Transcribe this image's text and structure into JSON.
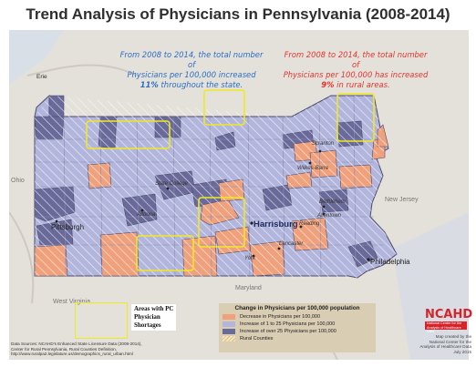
{
  "title": "Trend Analysis of Physicians in Pennsylvania (2008-2014)",
  "stat_statewide": {
    "line1": "From 2008 to 2014, the total number of",
    "line2": "Physicians per 100,000  increased",
    "pct": "11%",
    "line3": " throughout the state."
  },
  "stat_rural": {
    "line1": "From 2008 to 2014, the total number of",
    "line2": "Physicians per 100,000 has increased",
    "pct": "9%",
    "line3": " in rural areas."
  },
  "map_labels": {
    "erie": "Erie",
    "ohio": "Ohio",
    "new_jersey": "New Jersey",
    "west_virginia": "West Virginia",
    "maryland": "Maryland"
  },
  "cities": {
    "scranton": "Scranton",
    "wilkes_barre": "Wilkes-Barre",
    "state_college": "State College",
    "pittsburgh": "Pittsburgh",
    "altoona": "Altoona",
    "bethlehem": "Bethlehem",
    "allentown": "Allentown",
    "reading": "Reading",
    "harrisburg": "Harrisburg",
    "lancaster": "Lancaster",
    "york": "York",
    "philadelphia": "Philadelphia"
  },
  "shortage_legend": {
    "line1": "Areas with PC",
    "line2": "Physician",
    "line3": "Shortages"
  },
  "legend": {
    "title": "Change in Physicians per 100,000 population",
    "items": [
      {
        "label": "Decrease in Physicians per 100,000",
        "color": "#f0a17c"
      },
      {
        "label": "Increase of 1 to 25 Physicians per 100,000",
        "color": "#b3b6dc"
      },
      {
        "label": "Increase of over 25 Physicians per 100,000",
        "color": "#6a6a9a"
      },
      {
        "label": "Rural Counties",
        "color": "#f1e6c4"
      }
    ]
  },
  "sources": {
    "line1": "Data Sources: NCAHD's Enhanced State Licensure Data (2008-2014),",
    "line2": "Center for Rural Pennsylvania, Rural Counties Definition,",
    "line3": "http://www.ruralpa2.legislature.us/demographics_rural_urban.html"
  },
  "ncahd": {
    "logo": "NCAHD",
    "badge_line1": "National Center for the",
    "badge_line2": "Analysis of Healthcare Data",
    "credit_line1": "Map created by the",
    "credit_line2": "National Center for the",
    "credit_line3": "Analysis of Healthcare Data",
    "credit_line4": "July 2015"
  },
  "colors": {
    "decrease": "#f0a17c",
    "increase_low": "#b3b6dc",
    "increase_high": "#6a6a9a",
    "shortage_outline": "#efe91e",
    "harrisburg_text": "#1c2a5c"
  }
}
